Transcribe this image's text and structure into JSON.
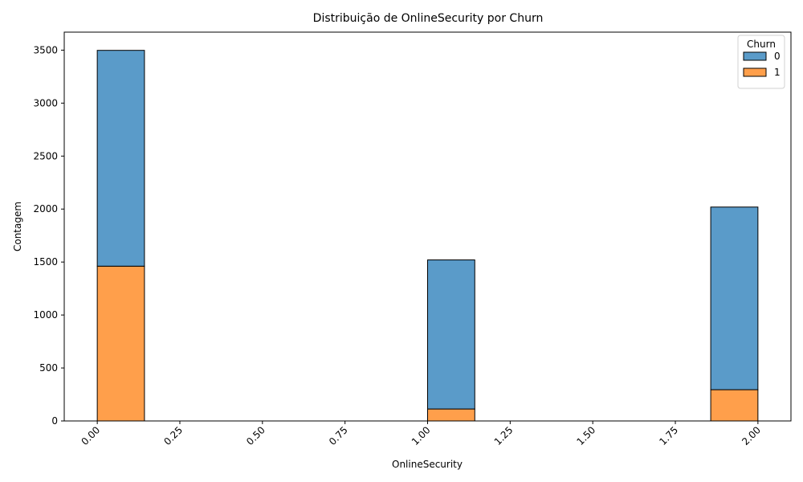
{
  "chart_data": {
    "type": "bar",
    "stacked": true,
    "title": "Distribuição de OnlineSecurity por Churn",
    "xlabel": "OnlineSecurity",
    "ylabel": "Contagem",
    "xlim": [
      -0.1,
      2.1
    ],
    "ylim": [
      0,
      3670
    ],
    "x_ticks": [
      "0.00",
      "0.25",
      "0.50",
      "0.75",
      "1.00",
      "1.25",
      "1.50",
      "1.75",
      "2.00"
    ],
    "x_tick_values": [
      0,
      0.25,
      0.5,
      0.75,
      1.0,
      1.25,
      1.5,
      1.75,
      2.0
    ],
    "y_ticks": [
      "0",
      "500",
      "1000",
      "1500",
      "2000",
      "2500",
      "3000",
      "3500"
    ],
    "y_tick_values": [
      0,
      500,
      1000,
      1500,
      2000,
      2500,
      3000,
      3500
    ],
    "bin_edges": [
      0.0,
      0.142857,
      0.285714,
      0.428571,
      0.571429,
      0.714286,
      0.857143,
      1.0,
      1.142857,
      1.285714,
      1.428571,
      1.571429,
      1.714286,
      1.857143,
      2.0
    ],
    "legend": {
      "title": "Churn",
      "position": "top-right"
    },
    "series": [
      {
        "name": "1",
        "color": "#ff9f4b",
        "values": [
          1461,
          0,
          0,
          0,
          0,
          0,
          0,
          113,
          0,
          0,
          0,
          0,
          0,
          295
        ]
      },
      {
        "name": "0",
        "color": "#5a9bc9",
        "values": [
          2037,
          0,
          0,
          0,
          0,
          0,
          0,
          1407,
          0,
          0,
          0,
          0,
          0,
          1724
        ]
      }
    ],
    "legend_order": [
      "0",
      "1"
    ],
    "grid": false
  }
}
